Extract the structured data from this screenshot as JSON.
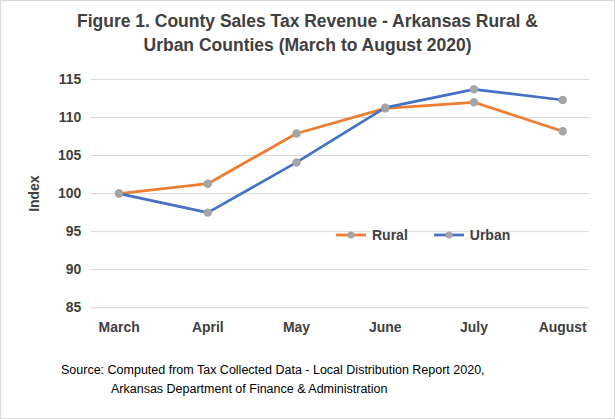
{
  "chart_data": {
    "type": "line",
    "title": "Figure 1. County Sales Tax Revenue  - Arkansas Rural & Urban Counties (March to August 2020)",
    "y_label": "Index",
    "caption": [
      "Source: Computed from Tax Collected Data  - Local Distribution Report 2020,",
      "Arkansas Department of Finance & Administration"
    ],
    "categories": [
      "March",
      "April",
      "May",
      "June",
      "July",
      "August"
    ],
    "series": [
      {
        "name": "Rural",
        "color": "#ed7d31",
        "marker": "circle",
        "values": [
          100,
          101.3,
          107.9,
          111.2,
          112.0,
          108.2
        ]
      },
      {
        "name": "Urban",
        "color": "#4472c4",
        "marker": "circle",
        "values": [
          100,
          97.5,
          104.1,
          111.3,
          113.7,
          112.3
        ]
      }
    ],
    "ylim": [
      85,
      115
    ],
    "yticks": [
      85,
      90,
      95,
      100,
      105,
      110,
      115
    ],
    "grid": true,
    "legend": "bottom-right"
  }
}
